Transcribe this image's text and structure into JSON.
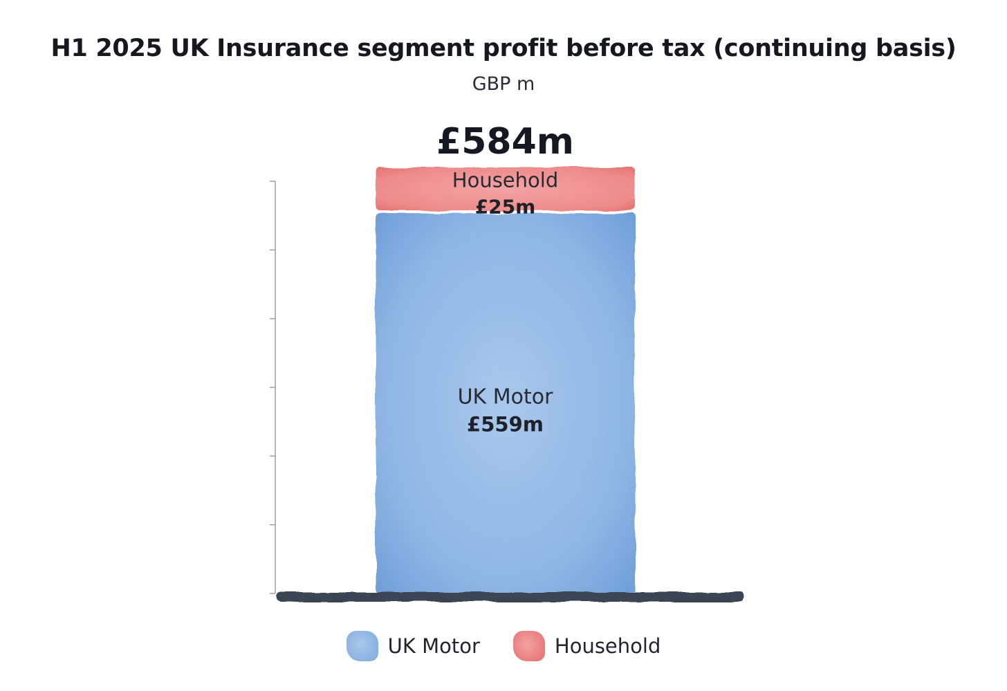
{
  "chart_data": {
    "type": "bar",
    "title": "H1 2025 UK Insurance segment profit before tax (continuing basis)",
    "subtitle": "GBP m",
    "total_label": "£584m",
    "total": 584,
    "stacked": true,
    "series": [
      {
        "name": "UK Motor",
        "value": 559,
        "value_label": "£559m",
        "color": "#7fa9dc"
      },
      {
        "name": "Household",
        "value": 25,
        "value_label": "£25m",
        "color": "#ec7f7f"
      }
    ],
    "legend": [
      {
        "label": "UK Motor",
        "color": "#7fa9dc"
      },
      {
        "label": "Household",
        "color": "#ec7f7f"
      }
    ],
    "legend_position": "bottom",
    "grid": false
  }
}
